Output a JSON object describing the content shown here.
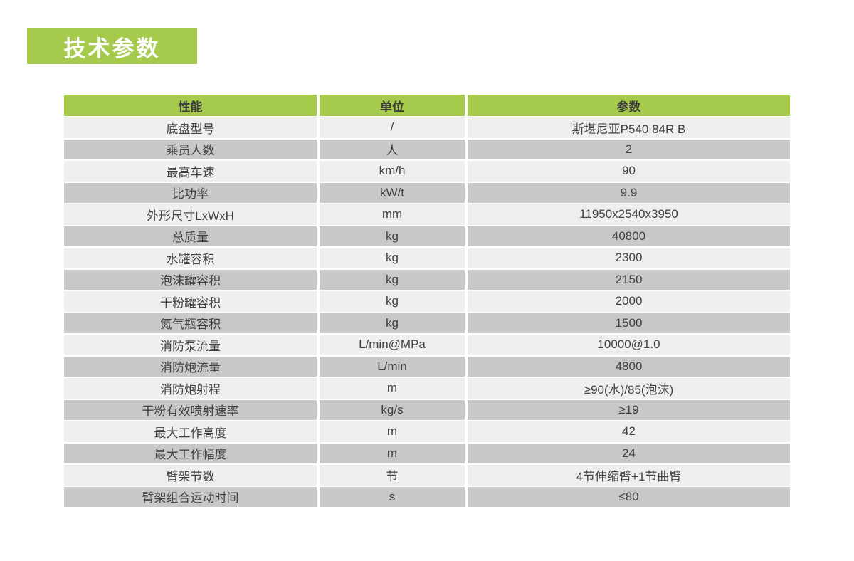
{
  "title": {
    "label": "技术参数",
    "bg_color": "#a5ca4c",
    "text_color": "#ffffff"
  },
  "table": {
    "headers": [
      "性能",
      "单位",
      "参数"
    ],
    "colors": {
      "header_bg": "#a5ca4c",
      "header_text": "#3b3b3b",
      "row_light_bg": "#efefef",
      "row_dark_bg": "#c8c8c8",
      "cell_text": "#414141"
    },
    "rows": [
      {
        "name": "底盘型号",
        "unit": "/",
        "value": "斯堪尼亚P540 84R B"
      },
      {
        "name": "乘员人数",
        "unit": "人",
        "value": "2"
      },
      {
        "name": "最高车速",
        "unit": "km/h",
        "value": "90"
      },
      {
        "name": "比功率",
        "unit": "kW/t",
        "value": "9.9"
      },
      {
        "name": "外形尺寸LxWxH",
        "unit": "mm",
        "value": "11950x2540x3950"
      },
      {
        "name": "总质量",
        "unit": "kg",
        "value": "40800"
      },
      {
        "name": "水罐容积",
        "unit": "kg",
        "value": "2300"
      },
      {
        "name": "泡沫罐容积",
        "unit": "kg",
        "value": "2150"
      },
      {
        "name": "干粉罐容积",
        "unit": "kg",
        "value": "2000"
      },
      {
        "name": "氮气瓶容积",
        "unit": "kg",
        "value": "1500"
      },
      {
        "name": "消防泵流量",
        "unit": "L/min@MPa",
        "value": "10000@1.0"
      },
      {
        "name": "消防炮流量",
        "unit": "L/min",
        "value": "4800"
      },
      {
        "name": "消防炮射程",
        "unit": "m",
        "value": "≥90(水)/85(泡沫)"
      },
      {
        "name": "干粉有效喷射速率",
        "unit": "kg/s",
        "value": "≥19"
      },
      {
        "name": "最大工作高度",
        "unit": "m",
        "value": "42"
      },
      {
        "name": "最大工作幅度",
        "unit": "m",
        "value": "24"
      },
      {
        "name": "臂架节数",
        "unit": "节",
        "value": "4节伸缩臂+1节曲臂"
      },
      {
        "name": "臂架组合运动时间",
        "unit": "s",
        "value": "≤80"
      }
    ]
  }
}
